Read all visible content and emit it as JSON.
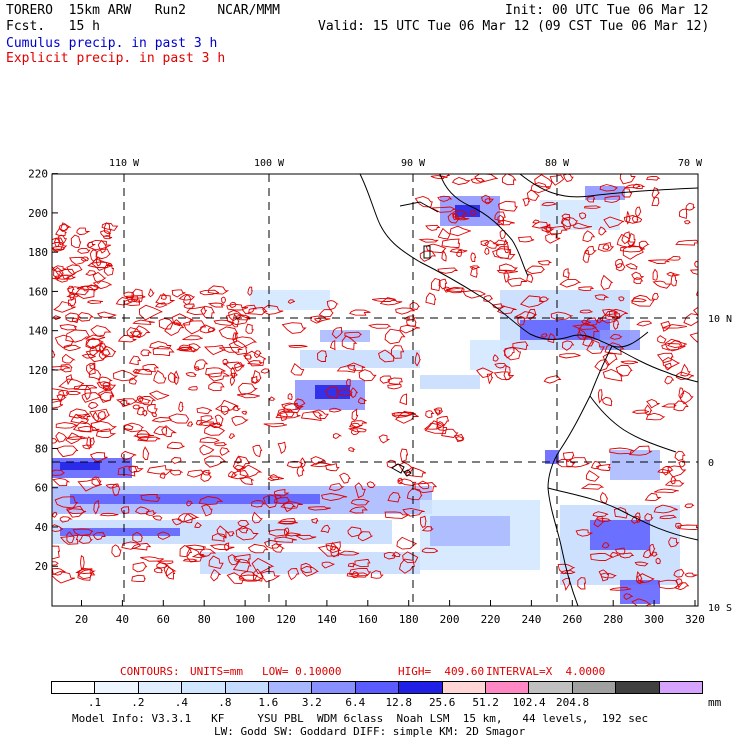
{
  "header": {
    "model_line": "TORERO  15km ARW   Run2    NCAR/MMM",
    "fcst_line": "Fcst.   15 h",
    "init": "Init: 00 UTC Tue 06 Mar 12",
    "valid": "Valid: 15 UTC Tue 06 Mar 12 (09 CST Tue 06 Mar 12)",
    "cumulus_label": "Cumulus precip. in past 3 h",
    "explicit_label": "Explicit precip. in past 3 h"
  },
  "map": {
    "top_lon_labels": [
      "110 W",
      "100 W",
      "90 W",
      "80 W",
      "70 W"
    ],
    "right_lat_labels": [
      "10 N",
      "0",
      "10 S"
    ],
    "y_ticks": [
      "220",
      "200",
      "180",
      "160",
      "140",
      "120",
      "100",
      "80",
      "60",
      "40",
      "20"
    ],
    "x_ticks": [
      "20",
      "40",
      "60",
      "80",
      "100",
      "120",
      "140",
      "160",
      "180",
      "200",
      "220",
      "240",
      "260",
      "280",
      "300",
      "320"
    ],
    "colors": {
      "contour": "#e00000",
      "land": "#000000",
      "grid": "#000000"
    }
  },
  "contour_info": {
    "label": "CONTOURS:",
    "units": "UNITS=mm",
    "low": "LOW= 0.10000",
    "high": "HIGH=  409.60",
    "interval": "INTERVAL=X  4.0000"
  },
  "colorbar": {
    "colors": [
      "#ffffff",
      "#eef6ff",
      "#e1eeff",
      "#d1e6ff",
      "#c4dcff",
      "#a7b6ff",
      "#8890ff",
      "#5a5cff",
      "#1f1fe6",
      "#ffd5d5",
      "#ff88c4",
      "#c0c0c0",
      "#a0a0a0",
      "#404040",
      "#d6a4ff"
    ],
    "labels": [
      ".1",
      ".2",
      ".4",
      ".8",
      "1.6",
      "3.2",
      "6.4",
      "12.8",
      "25.6",
      "51.2",
      "102.4",
      "204.8"
    ],
    "unit": "mm"
  },
  "footer": {
    "line1": "Model Info: V3.3.1   KF     YSU PBL  WDM 6class  Noah LSM  15 km,   44 levels,  192 sec",
    "line2": "LW: Godd SW: Goddard DIFF: simple KM: 2D Smagor"
  }
}
